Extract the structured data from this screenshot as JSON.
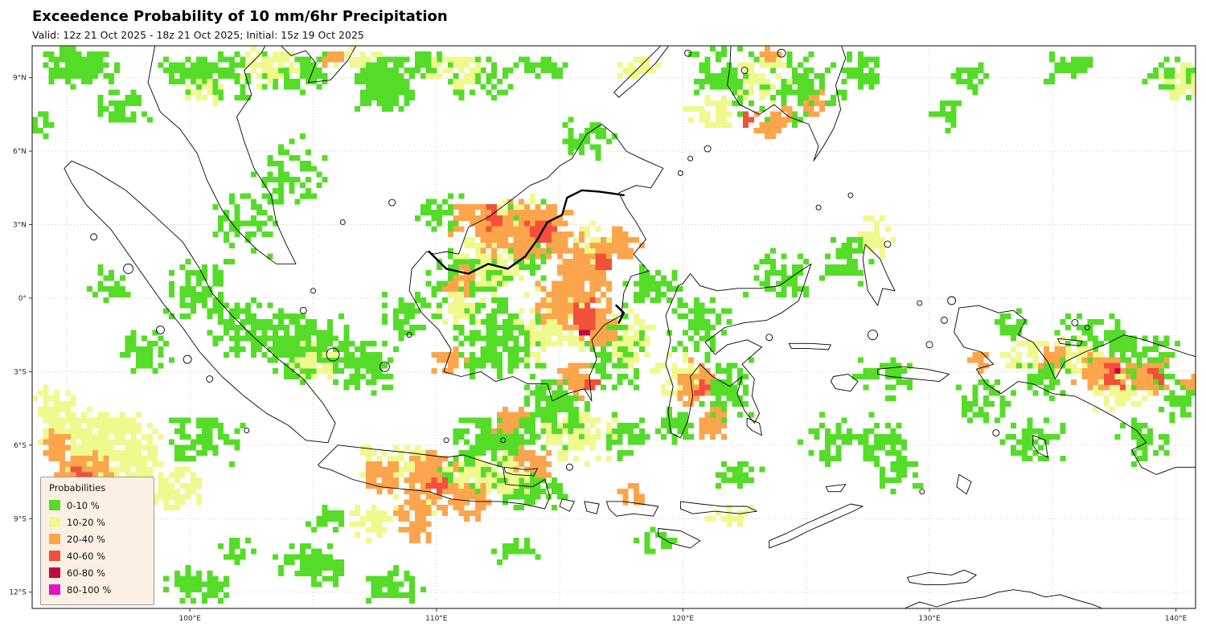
{
  "header": {
    "title": "Exceedence Probability of 10 mm/6hr Precipitation",
    "subtitle": "Valid: 12z 21 Oct 2025 - 18z 21 Oct 2025; Initial: 15z 19 Oct 2025"
  },
  "map": {
    "x_ticks": [
      "100°E",
      "110°E",
      "120°E",
      "130°E",
      "140°E"
    ],
    "y_ticks": [
      "9°N",
      "6°N",
      "3°N",
      "0°",
      "3°S",
      "6°S",
      "9°S",
      "12°S"
    ],
    "legend": {
      "title": "Probabilities",
      "items": [
        {
          "label": "0-10 %",
          "color": "#55dc28"
        },
        {
          "label": "10-20 %",
          "color": "#eff98e"
        },
        {
          "label": "20-40 %",
          "color": "#fca54c"
        },
        {
          "label": "40-60 %",
          "color": "#f1503a"
        },
        {
          "label": "60-80 %",
          "color": "#c00a3f"
        },
        {
          "label": "80-100 %",
          "color": "#e513c4"
        }
      ]
    }
  },
  "overlay": {
    "clusters": [
      [
        95.4,
        9.6,
        1.6,
        0.9,
        130,
        0
      ],
      [
        93.9,
        7.3,
        0.4,
        0.6,
        12,
        0
      ],
      [
        97.2,
        8.0,
        1.2,
        0.8,
        50,
        0
      ],
      [
        99.6,
        9.3,
        1.0,
        0.6,
        22,
        0
      ],
      [
        100.8,
        9.2,
        2.2,
        1.1,
        90,
        0
      ],
      [
        104.2,
        9.4,
        1.4,
        0.9,
        70,
        0
      ],
      [
        107.8,
        8.8,
        1.3,
        1.2,
        190,
        0
      ],
      [
        109.5,
        9.7,
        1.0,
        0.6,
        45,
        0
      ],
      [
        111.6,
        9.1,
        1.6,
        1.0,
        50,
        0
      ],
      [
        114.2,
        9.6,
        1.2,
        0.7,
        40,
        0
      ],
      [
        103.9,
        5.2,
        1.6,
        1.6,
        70,
        0
      ],
      [
        102.2,
        3.2,
        1.6,
        1.4,
        60,
        0
      ],
      [
        100.4,
        0.4,
        1.6,
        1.6,
        80,
        0
      ],
      [
        96.6,
        0.6,
        0.9,
        0.9,
        28,
        0
      ],
      [
        98.1,
        -2.1,
        1.1,
        1.1,
        40,
        0
      ],
      [
        102.1,
        -1.1,
        1.6,
        1.3,
        90,
        0
      ],
      [
        104.6,
        -1.9,
        1.9,
        1.6,
        210,
        0
      ],
      [
        106.9,
        -2.6,
        1.5,
        1.2,
        100,
        0
      ],
      [
        108.6,
        -0.6,
        1.1,
        1.1,
        50,
        0
      ],
      [
        111.2,
        0.6,
        2.0,
        1.6,
        140,
        0
      ],
      [
        113.6,
        2.6,
        1.6,
        1.6,
        120,
        0
      ],
      [
        110.1,
        3.6,
        1.1,
        0.9,
        40,
        0
      ],
      [
        116.1,
        6.6,
        1.1,
        0.9,
        40,
        0
      ],
      [
        112.6,
        -1.6,
        2.1,
        1.6,
        180,
        0
      ],
      [
        114.6,
        -4.6,
        1.6,
        1.6,
        150,
        0
      ],
      [
        112.4,
        -5.6,
        2.0,
        1.1,
        110,
        0
      ],
      [
        117.6,
        -5.6,
        1.1,
        0.9,
        40,
        0
      ],
      [
        110.5,
        -7.0,
        2.0,
        0.9,
        120,
        0
      ],
      [
        113.6,
        -7.6,
        1.6,
        0.9,
        80,
        0
      ],
      [
        117.1,
        -2.1,
        1.3,
        1.6,
        100,
        0
      ],
      [
        118.6,
        0.6,
        1.3,
        1.1,
        55,
        0
      ],
      [
        120.6,
        -1.1,
        1.3,
        1.3,
        70,
        0
      ],
      [
        121.6,
        -3.6,
        1.3,
        1.3,
        80,
        0
      ],
      [
        119.6,
        -5.1,
        0.9,
        0.9,
        35,
        0
      ],
      [
        123.6,
        1.1,
        1.6,
        1.1,
        65,
        0
      ],
      [
        126.6,
        1.6,
        1.1,
        1.1,
        45,
        0
      ],
      [
        121.6,
        9.1,
        1.6,
        1.6,
        80,
        0
      ],
      [
        124.6,
        8.6,
        1.9,
        1.6,
        100,
        0
      ],
      [
        127.1,
        9.6,
        1.1,
        0.9,
        35,
        0
      ],
      [
        130.6,
        7.6,
        0.9,
        0.9,
        30,
        0
      ],
      [
        131.6,
        9.1,
        0.9,
        0.7,
        28,
        0
      ],
      [
        135.6,
        9.6,
        1.1,
        0.7,
        35,
        0
      ],
      [
        139.6,
        9.1,
        1.3,
        0.9,
        45,
        0
      ],
      [
        136.6,
        -1.6,
        1.6,
        1.1,
        80,
        0
      ],
      [
        138.6,
        -2.6,
        1.6,
        1.3,
        90,
        0
      ],
      [
        140.1,
        -4.1,
        0.9,
        0.9,
        35,
        0
      ],
      [
        134.6,
        -3.1,
        1.1,
        1.1,
        45,
        0
      ],
      [
        132.1,
        -4.1,
        1.6,
        0.9,
        45,
        0
      ],
      [
        133.1,
        -1.1,
        0.9,
        0.7,
        28,
        0
      ],
      [
        128.1,
        -3.1,
        1.3,
        0.9,
        45,
        0
      ],
      [
        126.1,
        -5.6,
        1.6,
        1.1,
        45,
        0
      ],
      [
        128.0,
        -5.8,
        1.2,
        0.9,
        55,
        0
      ],
      [
        128.6,
        -7.1,
        1.1,
        0.7,
        28,
        0
      ],
      [
        122.1,
        -7.1,
        1.1,
        0.6,
        28,
        0
      ],
      [
        134.1,
        -5.6,
        1.6,
        1.1,
        55,
        0
      ],
      [
        138.6,
        -5.6,
        1.3,
        1.1,
        45,
        0
      ],
      [
        100.6,
        -5.6,
        1.6,
        1.1,
        70,
        0
      ],
      [
        100.1,
        -11.6,
        1.6,
        0.8,
        70,
        0
      ],
      [
        101.8,
        -10.2,
        0.8,
        0.5,
        20,
        0
      ],
      [
        104.6,
        -10.6,
        1.3,
        0.8,
        45,
        0
      ],
      [
        105.3,
        -11.1,
        0.9,
        0.6,
        28,
        0
      ],
      [
        108.1,
        -11.6,
        1.3,
        0.8,
        55,
        0
      ],
      [
        113.1,
        -10.1,
        1.1,
        0.6,
        28,
        0
      ],
      [
        118.9,
        -9.8,
        0.9,
        0.5,
        20,
        0
      ],
      [
        105.6,
        -8.9,
        0.9,
        0.6,
        25,
        0
      ],
      [
        96.4,
        -6.1,
        2.4,
        1.8,
        420,
        1
      ],
      [
        94.4,
        -4.6,
        1.0,
        1.2,
        80,
        1
      ],
      [
        99.1,
        -7.6,
        1.6,
        1.1,
        80,
        1
      ],
      [
        95.1,
        -7.9,
        1.3,
        0.9,
        50,
        1
      ],
      [
        103.1,
        9.6,
        1.6,
        0.8,
        45,
        1
      ],
      [
        106.6,
        9.9,
        1.1,
        0.5,
        28,
        1
      ],
      [
        110.6,
        9.4,
        1.3,
        0.8,
        40,
        1
      ],
      [
        100.6,
        8.6,
        0.9,
        0.6,
        22,
        1
      ],
      [
        112.1,
        1.6,
        1.6,
        1.6,
        80,
        1
      ],
      [
        116.4,
        2.1,
        1.1,
        1.1,
        45,
        1
      ],
      [
        114.6,
        -1.1,
        1.6,
        1.6,
        90,
        1
      ],
      [
        110.9,
        -0.3,
        1.1,
        0.9,
        35,
        1
      ],
      [
        115.6,
        -5.6,
        1.6,
        1.1,
        70,
        1
      ],
      [
        112.1,
        -7.1,
        2.1,
        1.0,
        80,
        1
      ],
      [
        108.1,
        -6.6,
        1.6,
        0.9,
        60,
        1
      ],
      [
        107.3,
        -9.0,
        1.0,
        0.8,
        35,
        1
      ],
      [
        109.1,
        -8.3,
        1.1,
        0.6,
        30,
        1
      ],
      [
        117.6,
        -1.6,
        1.1,
        1.3,
        45,
        1
      ],
      [
        119.6,
        -3.1,
        1.1,
        1.1,
        40,
        1
      ],
      [
        123.1,
        9.1,
        1.3,
        1.1,
        45,
        1
      ],
      [
        121.1,
        7.6,
        1.1,
        0.9,
        35,
        1
      ],
      [
        118.1,
        9.6,
        0.9,
        0.6,
        22,
        1
      ],
      [
        135.9,
        -2.3,
        1.3,
        0.9,
        45,
        1
      ],
      [
        137.6,
        -3.6,
        1.3,
        0.9,
        45,
        1
      ],
      [
        133.6,
        -2.1,
        0.9,
        0.7,
        28,
        1
      ],
      [
        127.6,
        2.6,
        0.9,
        0.9,
        28,
        1
      ],
      [
        104.9,
        -2.6,
        1.1,
        0.9,
        35,
        1
      ],
      [
        113.1,
        3.6,
        1.1,
        0.9,
        35,
        1
      ],
      [
        140.2,
        8.9,
        0.9,
        0.9,
        35,
        1
      ],
      [
        121.9,
        -8.8,
        1.0,
        0.4,
        18,
        1
      ],
      [
        113.6,
        2.9,
        2.1,
        1.2,
        280,
        2
      ],
      [
        115.9,
        1.3,
        1.2,
        1.5,
        170,
        2
      ],
      [
        116.4,
        -0.9,
        0.9,
        1.1,
        110,
        2
      ],
      [
        111.6,
        3.3,
        1.2,
        0.8,
        80,
        2
      ],
      [
        114.9,
        -0.1,
        1.1,
        1.1,
        80,
        2
      ],
      [
        110.9,
        0.9,
        0.8,
        0.6,
        30,
        2
      ],
      [
        117.4,
        2.3,
        0.8,
        0.8,
        50,
        2
      ],
      [
        109.6,
        -7.3,
        1.2,
        1.2,
        130,
        2
      ],
      [
        111.1,
        -8.1,
        1.0,
        0.8,
        60,
        2
      ],
      [
        107.6,
        -7.1,
        0.9,
        0.8,
        55,
        2
      ],
      [
        113.9,
        -6.6,
        1.0,
        0.6,
        45,
        2
      ],
      [
        109.0,
        -9.0,
        0.8,
        1.2,
        55,
        2
      ],
      [
        95.6,
        -7.1,
        1.2,
        1.0,
        100,
        2
      ],
      [
        94.4,
        -5.9,
        0.6,
        0.8,
        40,
        2
      ],
      [
        120.4,
        -3.3,
        0.8,
        1.0,
        60,
        2
      ],
      [
        121.1,
        -4.9,
        0.6,
        0.8,
        35,
        2
      ],
      [
        136.9,
        -2.9,
        1.2,
        0.8,
        80,
        2
      ],
      [
        138.9,
        -3.1,
        0.8,
        0.8,
        50,
        2
      ],
      [
        134.9,
        -2.3,
        0.6,
        0.6,
        30,
        2
      ],
      [
        123.5,
        7.3,
        0.8,
        0.7,
        40,
        2
      ],
      [
        125.3,
        8.0,
        0.5,
        0.5,
        18,
        2
      ],
      [
        112.9,
        -4.9,
        0.8,
        0.6,
        35,
        2
      ],
      [
        115.6,
        -3.3,
        0.8,
        0.8,
        45,
        2
      ],
      [
        105.6,
        9.95,
        0.6,
        0.4,
        16,
        2
      ],
      [
        123.4,
        9.95,
        0.5,
        0.4,
        12,
        2
      ],
      [
        140.6,
        -3.3,
        0.6,
        0.6,
        25,
        2
      ],
      [
        110.4,
        -2.4,
        0.7,
        0.6,
        28,
        2
      ],
      [
        117.9,
        -7.9,
        0.6,
        0.4,
        14,
        2
      ],
      [
        131.9,
        -2.6,
        0.5,
        0.5,
        15,
        2
      ],
      [
        115.9,
        -0.7,
        0.5,
        0.8,
        45,
        3
      ],
      [
        114.1,
        2.9,
        0.6,
        0.5,
        30,
        3
      ],
      [
        116.7,
        1.5,
        0.4,
        0.5,
        20,
        3
      ],
      [
        112.3,
        3.4,
        0.4,
        0.4,
        14,
        3
      ],
      [
        95.4,
        -7.3,
        0.5,
        0.5,
        22,
        3
      ],
      [
        109.9,
        -7.6,
        0.4,
        0.4,
        14,
        3
      ],
      [
        137.3,
        -3.0,
        0.5,
        0.5,
        20,
        3
      ],
      [
        139.1,
        -3.2,
        0.4,
        0.4,
        12,
        3
      ],
      [
        120.7,
        -3.5,
        0.3,
        0.4,
        9,
        3
      ],
      [
        122.6,
        7.4,
        0.4,
        0.4,
        10,
        3
      ],
      [
        116.2,
        -3.4,
        0.3,
        0.3,
        7,
        3
      ],
      [
        115.9,
        -1.3,
        0.28,
        0.25,
        8,
        4
      ],
      [
        137.4,
        -2.9,
        0.2,
        0.2,
        4,
        4
      ]
    ]
  }
}
